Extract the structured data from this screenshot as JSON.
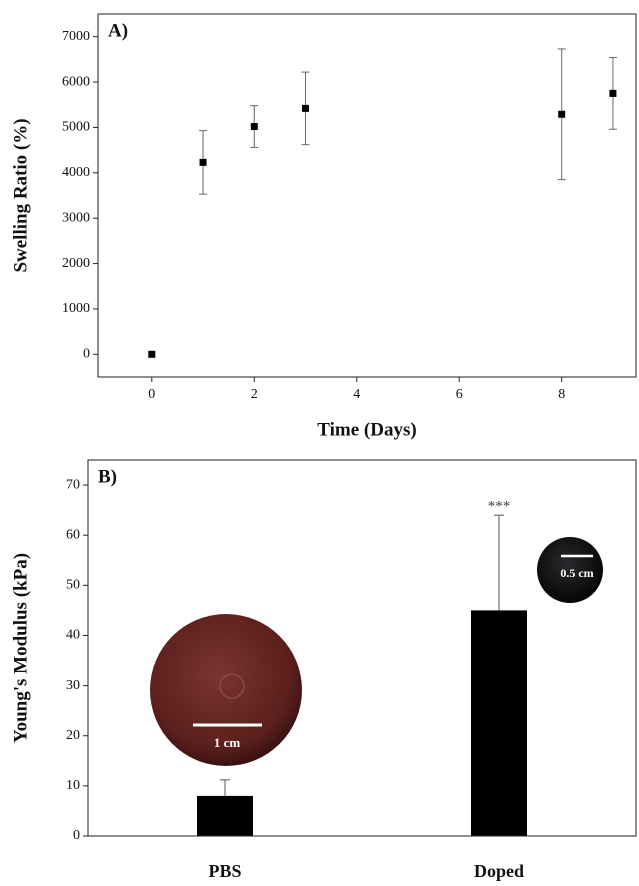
{
  "chart_data": [
    {
      "type": "scatter",
      "panel_label": "A)",
      "x_label": "Time (Days)",
      "y_label": "Swelling Ratio (%)",
      "x": [
        0,
        1,
        2,
        3,
        8,
        9
      ],
      "values": [
        0,
        4230,
        5020,
        5420,
        5290,
        5750
      ],
      "errors": [
        0,
        700,
        460,
        800,
        1440,
        790
      ],
      "color": "#000000",
      "xlim": [
        -1.05,
        9.45
      ],
      "xticks": [
        0,
        2,
        4,
        6,
        8
      ],
      "ylim": [
        -500,
        7500
      ],
      "yticks": [
        0,
        1000,
        2000,
        3000,
        4000,
        5000,
        6000,
        7000
      ]
    },
    {
      "type": "bar",
      "panel_label": "B)",
      "y_label": "Young's Modulus (kPa)",
      "categories": [
        "PBS",
        "Doped"
      ],
      "values": [
        8,
        45
      ],
      "errors": [
        3.2,
        19
      ],
      "color": "#000000",
      "ylim": [
        0,
        75
      ],
      "yticks": [
        0,
        10,
        20,
        30,
        40,
        50,
        60,
        70
      ],
      "annotation": "***",
      "scale_bar_labels": [
        "1 cm",
        "0.5 cm"
      ]
    }
  ]
}
